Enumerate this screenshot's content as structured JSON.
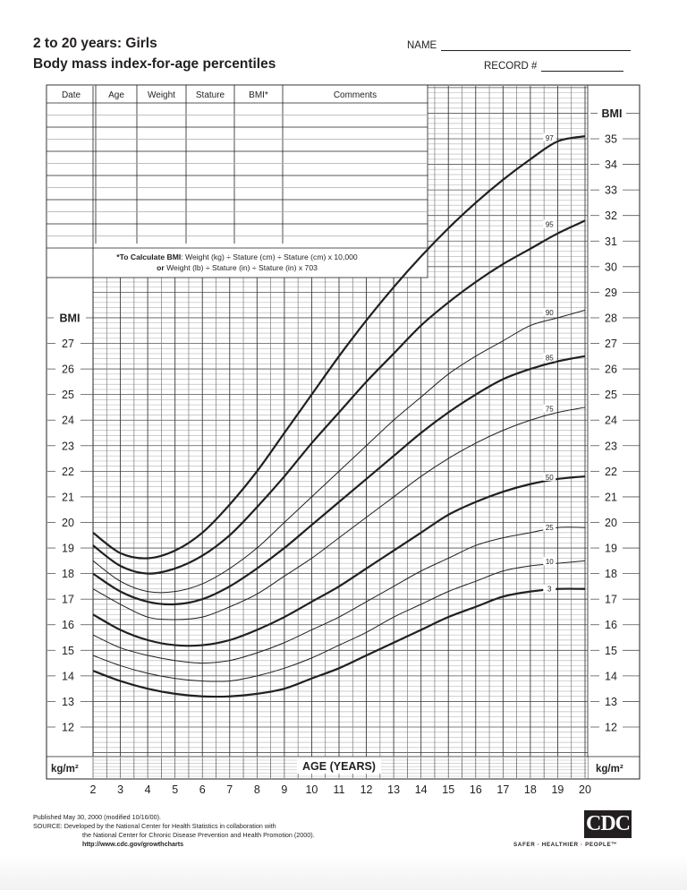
{
  "header": {
    "title_line1": "2 to 20 years: Girls",
    "title_line2": "Body mass index-for-age percentiles",
    "name_label": "NAME",
    "record_label": "RECORD #"
  },
  "record_table": {
    "columns": [
      "Date",
      "Age",
      "Weight",
      "Stature",
      "BMI*",
      "Comments"
    ],
    "rows": 12,
    "bmi_formula_line1_bold": "*To Calculate BMI",
    "bmi_formula_line1": ": Weight (kg) ÷ Stature (cm) ÷ Stature (cm) x 10,000",
    "bmi_formula_line2_bold": "or",
    "bmi_formula_line2": " Weight (lb) ÷ Stature (in) ÷ Stature (in) x 703"
  },
  "axis": {
    "left_title": "BMI",
    "right_title": "BMI",
    "unit_left": "kg/m²",
    "unit_right": "kg/m²",
    "x_title": "AGE (YEARS)",
    "x_ticks": [
      "2",
      "3",
      "4",
      "5",
      "6",
      "7",
      "8",
      "9",
      "10",
      "11",
      "12",
      "13",
      "14",
      "15",
      "16",
      "17",
      "18",
      "19",
      "20"
    ],
    "left_ticks": [
      "27",
      "26",
      "25",
      "24",
      "23",
      "22",
      "21",
      "20",
      "19",
      "18",
      "17",
      "16",
      "15",
      "14",
      "13",
      "12"
    ],
    "right_ticks": [
      "35",
      "34",
      "33",
      "32",
      "31",
      "30",
      "29",
      "28",
      "27",
      "26",
      "25",
      "24",
      "23",
      "22",
      "21",
      "20",
      "19",
      "18",
      "17",
      "16",
      "15",
      "14",
      "13",
      "12"
    ]
  },
  "chart_data": {
    "type": "line",
    "title": "2 to 20 years: Girls — Body mass index-for-age percentiles",
    "xlabel": "AGE (YEARS)",
    "ylabel": "BMI (kg/m²)",
    "xlim": [
      2,
      20
    ],
    "ylim": [
      12,
      35
    ],
    "grid": true,
    "x": [
      2,
      3,
      4,
      5,
      6,
      7,
      8,
      9,
      10,
      11,
      12,
      13,
      14,
      15,
      16,
      17,
      18,
      19,
      20
    ],
    "series": [
      {
        "name": "97",
        "label": "97",
        "weight": "bold",
        "values": [
          19.6,
          18.8,
          18.6,
          18.9,
          19.6,
          20.7,
          22.0,
          23.5,
          25.0,
          26.5,
          27.9,
          29.2,
          30.4,
          31.5,
          32.5,
          33.4,
          34.2,
          34.9,
          35.1
        ]
      },
      {
        "name": "95",
        "label": "95",
        "weight": "bold",
        "values": [
          19.1,
          18.3,
          18.0,
          18.2,
          18.7,
          19.5,
          20.6,
          21.8,
          23.1,
          24.3,
          25.5,
          26.6,
          27.7,
          28.6,
          29.4,
          30.1,
          30.7,
          31.3,
          31.8
        ]
      },
      {
        "name": "90",
        "label": "90",
        "weight": "thin",
        "values": [
          18.5,
          17.7,
          17.3,
          17.3,
          17.6,
          18.2,
          19.0,
          20.0,
          21.0,
          22.0,
          23.0,
          24.0,
          24.9,
          25.8,
          26.5,
          27.1,
          27.7,
          28.0,
          28.3
        ]
      },
      {
        "name": "85",
        "label": "85",
        "weight": "bold",
        "values": [
          18.0,
          17.3,
          16.9,
          16.8,
          17.0,
          17.5,
          18.2,
          19.0,
          19.9,
          20.8,
          21.7,
          22.6,
          23.5,
          24.3,
          25.0,
          25.6,
          26.0,
          26.3,
          26.5
        ]
      },
      {
        "name": "75",
        "label": "75",
        "weight": "thin",
        "values": [
          17.4,
          16.8,
          16.3,
          16.2,
          16.3,
          16.7,
          17.2,
          17.9,
          18.6,
          19.4,
          20.2,
          21.0,
          21.8,
          22.5,
          23.1,
          23.6,
          24.0,
          24.3,
          24.5
        ]
      },
      {
        "name": "50",
        "label": "50",
        "weight": "bold",
        "values": [
          16.4,
          15.8,
          15.4,
          15.2,
          15.2,
          15.4,
          15.8,
          16.3,
          16.9,
          17.5,
          18.2,
          18.9,
          19.6,
          20.3,
          20.8,
          21.2,
          21.5,
          21.7,
          21.8
        ]
      },
      {
        "name": "25",
        "label": "25",
        "weight": "thin",
        "values": [
          15.6,
          15.1,
          14.8,
          14.6,
          14.5,
          14.6,
          14.9,
          15.3,
          15.8,
          16.3,
          16.9,
          17.5,
          18.1,
          18.6,
          19.1,
          19.4,
          19.6,
          19.8,
          19.8
        ]
      },
      {
        "name": "10",
        "label": "10",
        "weight": "thin",
        "values": [
          14.8,
          14.4,
          14.1,
          13.9,
          13.8,
          13.8,
          14.0,
          14.3,
          14.7,
          15.2,
          15.7,
          16.3,
          16.8,
          17.3,
          17.7,
          18.1,
          18.3,
          18.4,
          18.5
        ]
      },
      {
        "name": "3",
        "label": "3",
        "weight": "bold",
        "values": [
          14.2,
          13.8,
          13.5,
          13.3,
          13.2,
          13.2,
          13.3,
          13.5,
          13.9,
          14.3,
          14.8,
          15.3,
          15.8,
          16.3,
          16.7,
          17.1,
          17.3,
          17.4,
          17.4
        ]
      }
    ]
  },
  "footer": {
    "published": "Published May 30, 2000 (modified 10/16/00).",
    "source_label": "SOURCE:",
    "source_line1": "Developed by the National Center for Health Statistics in collaboration with",
    "source_line2": "the National Center for Chronic Disease Prevention and Health Promotion (2000).",
    "url": "http://www.cdc.gov/growthcharts",
    "logo_text": "CDC",
    "tagline": "SAFER · HEALTHIER · PEOPLE™"
  }
}
